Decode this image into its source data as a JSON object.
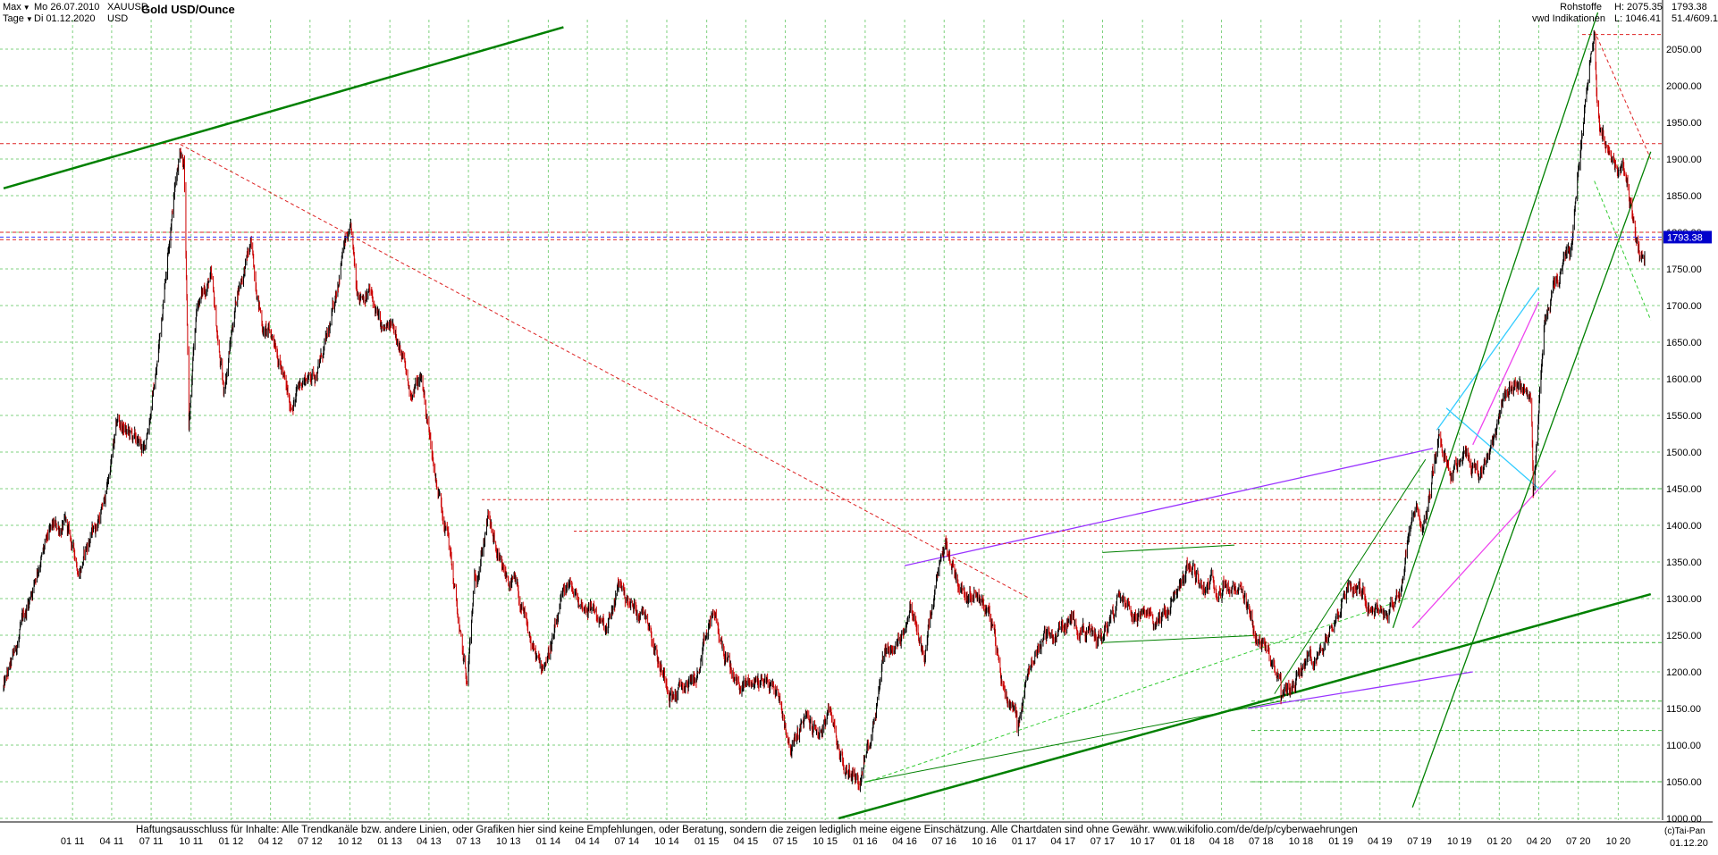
{
  "header": {
    "range_label": "Max",
    "interval_label": "Tage",
    "date_from": "Mo 26.07.2010",
    "date_to": "Di 01.12.2020",
    "symbol": "XAUUSD",
    "currency": "USD",
    "title": "Gold USD/Ounce",
    "category": "Rohstoffe",
    "source": "vwd Indikationen",
    "high_text": "H: 2075.35",
    "low_text": "L: 1046.41",
    "last_text": "1793.38",
    "extra_text": "51.4/609.1"
  },
  "footer": {
    "disclaimer": "Haftungsausschluss für Inhalte: Alle Trendkanäle bzw. andere Linien, oder Grafiken hier sind keine Empfehlungen, oder Beratung, sondern die zeigen lediglich meine eigene Einschätzung. Alle Chartdaten sind ohne Gewähr.  www.wikifolio.com/de/de/p/cyberwaehrungen",
    "copyright": "(c)Tai-Pan",
    "last_date_label": "01.12.20"
  },
  "colors": {
    "price_up": "#000000",
    "price_down": "#cc0000",
    "grid": "#7fd17f",
    "trend_green": "#008000",
    "trend_violet": "#9933ff",
    "trend_magenta": "#ee44ee",
    "trend_cyan": "#33ccff",
    "resistance_red": "#dd2222",
    "last_price_box": "#0000cc"
  },
  "chart_data": {
    "type": "line",
    "title": "Gold USD/Ounce",
    "xlabel": "",
    "ylabel": "",
    "ylim": [
      1000,
      2100
    ],
    "xlim": [
      "2010-07-26",
      "2020-12-01"
    ],
    "grid": true,
    "y_ticks": [
      1000,
      1050,
      1100,
      1150,
      1200,
      1250,
      1300,
      1350,
      1400,
      1450,
      1500,
      1550,
      1600,
      1650,
      1700,
      1750,
      1800,
      1850,
      1900,
      1950,
      2000,
      2050
    ],
    "x_tick_labels": [
      "01 11",
      "04 11",
      "07 11",
      "10 11",
      "01 12",
      "04 12",
      "07 12",
      "10 12",
      "01 13",
      "04 13",
      "07 13",
      "10 13",
      "01 14",
      "04 14",
      "07 14",
      "10 14",
      "01 15",
      "04 15",
      "07 15",
      "10 15",
      "01 16",
      "04 16",
      "07 16",
      "10 16",
      "01 17",
      "04 17",
      "07 17",
      "10 17",
      "01 18",
      "04 18",
      "07 18",
      "10 18",
      "01 19",
      "04 19",
      "07 19",
      "10 19",
      "01 20",
      "04 20",
      "07 20",
      "10 20"
    ],
    "last_value": 1793.38,
    "series": [
      {
        "values_monthly": [
          [
            "2010-07",
            1160
          ],
          [
            "2010-08",
            1210
          ],
          [
            "2010-09",
            1280
          ],
          [
            "2010-10",
            1350
          ],
          [
            "2010-11",
            1390
          ],
          [
            "2010-12",
            1400
          ],
          [
            "2011-01",
            1340
          ],
          [
            "2011-02",
            1390
          ],
          [
            "2011-03",
            1430
          ],
          [
            "2011-04",
            1540
          ],
          [
            "2011-05",
            1520
          ],
          [
            "2011-06",
            1500
          ],
          [
            "2011-07",
            1620
          ],
          [
            "2011-08",
            1820
          ],
          [
            "2011-09",
            1900
          ],
          [
            "2011-10",
            1700
          ],
          [
            "2011-11",
            1740
          ],
          [
            "2011-12",
            1580
          ],
          [
            "2012-01",
            1720
          ],
          [
            "2012-02",
            1780
          ],
          [
            "2012-03",
            1670
          ],
          [
            "2012-04",
            1650
          ],
          [
            "2012-05",
            1560
          ],
          [
            "2012-06",
            1600
          ],
          [
            "2012-07",
            1610
          ],
          [
            "2012-08",
            1660
          ],
          [
            "2012-09",
            1780
          ],
          [
            "2012-10",
            1720
          ],
          [
            "2012-11",
            1720
          ],
          [
            "2012-12",
            1660
          ],
          [
            "2013-01",
            1670
          ],
          [
            "2013-02",
            1580
          ],
          [
            "2013-03",
            1600
          ],
          [
            "2013-04",
            1470
          ],
          [
            "2013-05",
            1390
          ],
          [
            "2013-06",
            1230
          ],
          [
            "2013-07",
            1320
          ],
          [
            "2013-08",
            1410
          ],
          [
            "2013-09",
            1330
          ],
          [
            "2013-10",
            1320
          ],
          [
            "2013-11",
            1250
          ],
          [
            "2013-12",
            1200
          ],
          [
            "2014-01",
            1250
          ],
          [
            "2014-02",
            1320
          ],
          [
            "2014-03",
            1290
          ],
          [
            "2014-04",
            1290
          ],
          [
            "2014-05",
            1250
          ],
          [
            "2014-06",
            1320
          ],
          [
            "2014-07",
            1285
          ],
          [
            "2014-08",
            1285
          ],
          [
            "2014-09",
            1210
          ],
          [
            "2014-10",
            1170
          ],
          [
            "2014-11",
            1180
          ],
          [
            "2014-12",
            1200
          ],
          [
            "2015-01",
            1280
          ],
          [
            "2015-02",
            1215
          ],
          [
            "2015-03",
            1180
          ],
          [
            "2015-04",
            1185
          ],
          [
            "2015-05",
            1190
          ],
          [
            "2015-06",
            1170
          ],
          [
            "2015-07",
            1095
          ],
          [
            "2015-08",
            1135
          ],
          [
            "2015-09",
            1115
          ],
          [
            "2015-10",
            1140
          ],
          [
            "2015-11",
            1065
          ],
          [
            "2015-12",
            1060
          ],
          [
            "2016-01",
            1115
          ],
          [
            "2016-02",
            1235
          ],
          [
            "2016-03",
            1235
          ],
          [
            "2016-04",
            1290
          ],
          [
            "2016-05",
            1215
          ],
          [
            "2016-06",
            1320
          ],
          [
            "2016-07",
            1350
          ],
          [
            "2016-08",
            1310
          ],
          [
            "2016-09",
            1315
          ],
          [
            "2016-10",
            1275
          ],
          [
            "2016-11",
            1175
          ],
          [
            "2016-12",
            1150
          ],
          [
            "2017-01",
            1210
          ],
          [
            "2017-02",
            1250
          ],
          [
            "2017-03",
            1250
          ],
          [
            "2017-04",
            1270
          ],
          [
            "2017-05",
            1265
          ],
          [
            "2017-06",
            1240
          ],
          [
            "2017-07",
            1270
          ],
          [
            "2017-08",
            1320
          ],
          [
            "2017-09",
            1280
          ],
          [
            "2017-10",
            1270
          ],
          [
            "2017-11",
            1275
          ],
          [
            "2017-12",
            1300
          ],
          [
            "2018-01",
            1345
          ],
          [
            "2018-02",
            1320
          ],
          [
            "2018-03",
            1325
          ],
          [
            "2018-04",
            1315
          ],
          [
            "2018-05",
            1300
          ],
          [
            "2018-06",
            1250
          ],
          [
            "2018-07",
            1225
          ],
          [
            "2018-08",
            1200
          ],
          [
            "2018-09",
            1190
          ],
          [
            "2018-10",
            1215
          ],
          [
            "2018-11",
            1220
          ],
          [
            "2018-12",
            1280
          ],
          [
            "2019-01",
            1320
          ],
          [
            "2019-02",
            1315
          ],
          [
            "2019-03",
            1295
          ],
          [
            "2019-04",
            1285
          ],
          [
            "2019-05",
            1305
          ],
          [
            "2019-06",
            1410
          ],
          [
            "2019-07",
            1415
          ],
          [
            "2019-08",
            1520
          ],
          [
            "2019-09",
            1470
          ],
          [
            "2019-10",
            1510
          ],
          [
            "2019-11",
            1465
          ],
          [
            "2019-12",
            1515
          ],
          [
            "2020-01",
            1585
          ],
          [
            "2020-02",
            1585
          ],
          [
            "2020-03",
            1580
          ],
          [
            "2020-04",
            1685
          ],
          [
            "2020-05",
            1730
          ],
          [
            "2020-06",
            1780
          ],
          [
            "2020-07",
            1975
          ],
          [
            "2020-08",
            1965
          ],
          [
            "2020-09",
            1885
          ],
          [
            "2020-10",
            1880
          ],
          [
            "2020-11",
            1775
          ],
          [
            "2020-12",
            1793
          ]
        ],
        "key_points": [
          [
            "2011-09-06",
            1920
          ],
          [
            "2011-09-26",
            1535
          ],
          [
            "2012-10-04",
            1795
          ],
          [
            "2013-06-28",
            1180
          ],
          [
            "2015-12-17",
            1046
          ],
          [
            "2016-07-06",
            1375
          ],
          [
            "2016-12-15",
            1123
          ],
          [
            "2018-08-16",
            1160
          ],
          [
            "2020-03-19",
            1451
          ],
          [
            "2020-08-07",
            2075
          ],
          [
            "2020-11-30",
            1765
          ]
        ]
      }
    ],
    "annotations": {
      "long_term_uptrend_top": [
        [
          "2010-07-26",
          1860
        ],
        [
          "2014-02-05",
          2080
        ]
      ],
      "long_term_uptrend_bottom": [
        [
          "2015-11-01",
          1000
        ],
        [
          "2020-12-15",
          1306
        ]
      ],
      "horizontal_resistance_levels": [
        2070,
        1921,
        1800,
        1790
      ],
      "horizontal_support_levels": [
        1450,
        1240,
        1160,
        1120,
        1050
      ]
    }
  }
}
